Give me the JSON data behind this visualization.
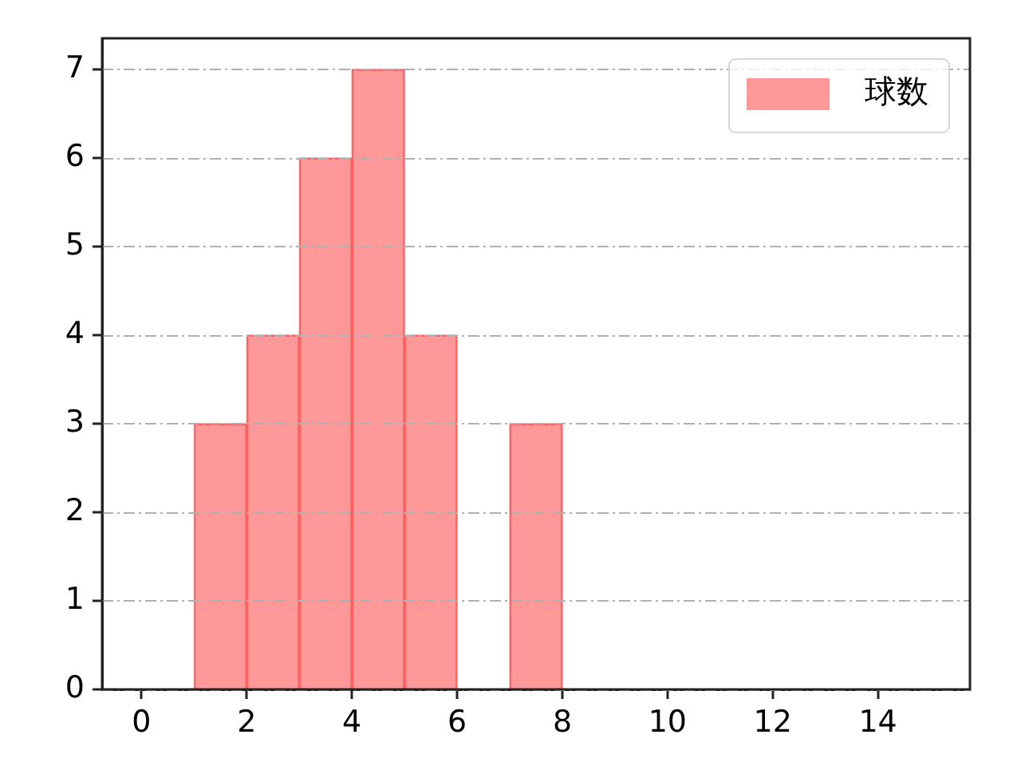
{
  "chart_data": {
    "type": "histogram",
    "bins": [
      1,
      2,
      3,
      4,
      5,
      6,
      7,
      8
    ],
    "series": [
      {
        "name": "球数",
        "color": "#ff9999",
        "values": [
          3,
          4,
          6,
          7,
          4,
          0,
          3
        ]
      }
    ],
    "xlim": [
      -0.75,
      15.75
    ],
    "xticks": [
      0,
      2,
      4,
      6,
      8,
      10,
      12,
      14
    ],
    "ylim": [
      0,
      7.35
    ],
    "yticks": [
      0,
      1,
      2,
      3,
      4,
      5,
      6,
      7
    ],
    "grid": "y",
    "legend": "top right"
  }
}
